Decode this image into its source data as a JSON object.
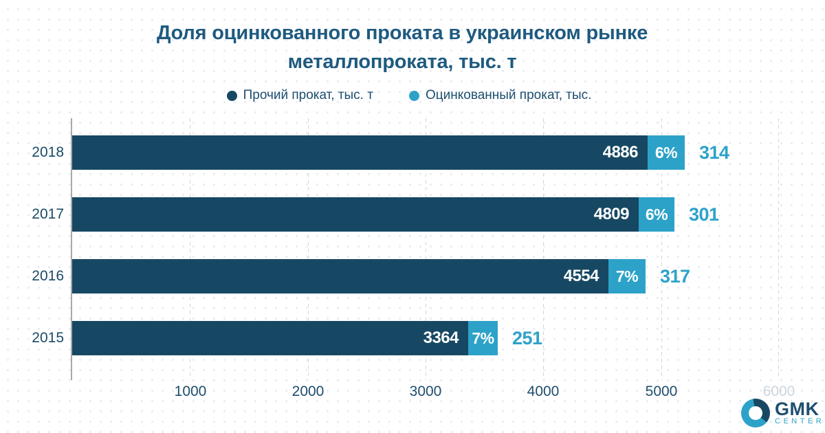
{
  "title": {
    "line1": "Доля оцинкованного проката в украинском рынке",
    "line2": "металлопроката, тыс. т"
  },
  "legend": {
    "items": [
      {
        "label": "Прочий прокат, тыс. т",
        "color": "#174863"
      },
      {
        "label": "Оцинкованный прокат, тыс.",
        "color": "#2da2c9"
      }
    ]
  },
  "chart_data": {
    "type": "bar",
    "orientation": "horizontal",
    "title": "Доля оцинкованного проката в украинском рынке металлопроката, тыс. т",
    "categories": [
      "2018",
      "2017",
      "2016",
      "2015"
    ],
    "series": [
      {
        "name": "Прочий прокат, тыс. т",
        "color": "#174863",
        "values": [
          4886,
          4809,
          4554,
          3364
        ]
      },
      {
        "name": "Оцинкованный прокат, тыс.",
        "color": "#2da2c9",
        "values": [
          314,
          301,
          317,
          251
        ]
      }
    ],
    "rows": [
      {
        "year": "2018",
        "other": 4886,
        "percent": "6%",
        "galvanized": 314
      },
      {
        "year": "2017",
        "other": 4809,
        "percent": "6%",
        "galvanized": 301
      },
      {
        "year": "2016",
        "other": 4554,
        "percent": "7%",
        "galvanized": 317
      },
      {
        "year": "2015",
        "other": 3364,
        "percent": "7%",
        "galvanized": 251
      }
    ],
    "x_tick_labels": [
      "1000",
      "2000",
      "3000",
      "4000",
      "5000",
      "6000"
    ],
    "xlim": [
      0,
      6000
    ],
    "grid": "vertical-dashed",
    "legend_position": "top"
  },
  "logo": {
    "name": "GMK",
    "subname": "CENTER"
  },
  "colors": {
    "bar_dark": "#174863",
    "bar_light": "#2da2c9",
    "title_text": "#1e5a80",
    "axis_text": "#1d4d6d",
    "faded_tick": "#ccd5dc",
    "background": "#ffffff",
    "dot_pattern": "#ebecf1"
  }
}
